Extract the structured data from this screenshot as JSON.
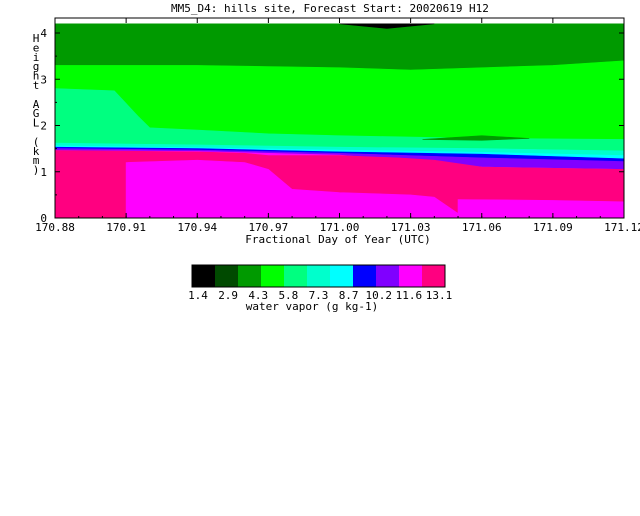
{
  "chart_data": {
    "type": "heatmap",
    "title": "MM5_D4: hills site,  Forecast Start: 20020619 H12",
    "xlabel": "Fractional Day of Year (UTC)",
    "ylabel": "Height AGL (km)",
    "xlim": [
      170.88,
      171.12
    ],
    "ylim": [
      0,
      4.2
    ],
    "x_ticks": [
      "170.88",
      "170.91",
      "170.94",
      "170.97",
      "171.00",
      "171.03",
      "171.06",
      "171.09",
      "171.12"
    ],
    "y_ticks": [
      "0",
      "1",
      "2",
      "3",
      "4"
    ],
    "colorbar": {
      "label": "water vapor (g kg-1)",
      "tick_labels": [
        "1.4",
        "2.9",
        "4.3",
        "5.8",
        "7.3",
        "8.7",
        "10.2",
        "11.6",
        "13.1"
      ],
      "colors": [
        "#000000",
        "#004a00",
        "#009a00",
        "#00ff00",
        "#00ff80",
        "#00ffcc",
        "#00ffff",
        "#0000ff",
        "#8000ff",
        "#ff00ff",
        "#ff0080"
      ]
    },
    "regions": [
      {
        "level": 1,
        "top": [
          [
            170.88,
            4.2
          ],
          [
            171.12,
            4.2
          ]
        ],
        "bottom": [
          [
            171.12,
            4.2
          ],
          [
            170.88,
            4.2
          ]
        ]
      },
      {
        "level": 2,
        "top": [
          [
            170.88,
            4.2
          ],
          [
            171.12,
            4.2
          ]
        ],
        "bottom": [
          [
            171.12,
            1.65
          ],
          [
            171.06,
            1.65
          ],
          [
            171.0,
            1.7
          ],
          [
            170.94,
            1.75
          ],
          [
            170.88,
            1.8
          ]
        ]
      },
      {
        "level": 3,
        "top": [
          [
            170.88,
            3.3
          ],
          [
            170.94,
            3.3
          ],
          [
            171.0,
            3.25
          ],
          [
            171.03,
            3.2
          ],
          [
            171.09,
            3.3
          ],
          [
            171.12,
            3.4
          ]
        ],
        "bottom": [
          [
            171.12,
            1.65
          ],
          [
            171.06,
            1.65
          ],
          [
            171.0,
            1.7
          ],
          [
            170.94,
            1.75
          ],
          [
            170.88,
            1.8
          ]
        ]
      },
      {
        "level": 4,
        "top": [
          [
            170.88,
            2.8
          ],
          [
            170.905,
            2.75
          ],
          [
            170.915,
            2.2
          ],
          [
            170.92,
            1.95
          ],
          [
            170.94,
            1.9
          ],
          [
            170.97,
            1.82
          ],
          [
            171.0,
            1.78
          ],
          [
            171.06,
            1.72
          ],
          [
            171.12,
            1.7
          ]
        ],
        "bottom": [
          [
            171.12,
            1.45
          ],
          [
            171.06,
            1.5
          ],
          [
            171.0,
            1.52
          ],
          [
            170.94,
            1.55
          ],
          [
            170.88,
            1.6
          ]
        ]
      },
      {
        "level": 5,
        "top": [
          [
            170.88,
            1.62
          ],
          [
            170.94,
            1.58
          ],
          [
            171.0,
            1.53
          ],
          [
            171.06,
            1.5
          ],
          [
            171.12,
            1.45
          ]
        ],
        "bottom": [
          [
            171.12,
            1.35
          ],
          [
            171.06,
            1.42
          ],
          [
            171.0,
            1.47
          ],
          [
            170.94,
            1.52
          ],
          [
            170.88,
            1.56
          ]
        ]
      },
      {
        "level": 6,
        "top": [
          [
            170.88,
            1.56
          ],
          [
            170.94,
            1.52
          ],
          [
            171.0,
            1.47
          ],
          [
            171.06,
            1.42
          ],
          [
            171.12,
            1.35
          ]
        ],
        "bottom": [
          [
            171.12,
            1.28
          ],
          [
            171.06,
            1.38
          ],
          [
            171.0,
            1.43
          ],
          [
            170.94,
            1.5
          ],
          [
            170.88,
            1.53
          ]
        ]
      },
      {
        "level": 7,
        "top": [
          [
            170.88,
            1.53
          ],
          [
            170.94,
            1.5
          ],
          [
            171.0,
            1.43
          ],
          [
            171.06,
            1.38
          ],
          [
            171.12,
            1.28
          ]
        ],
        "bottom": [
          [
            171.12,
            1.22
          ],
          [
            171.06,
            1.3
          ],
          [
            171.0,
            1.4
          ],
          [
            170.94,
            1.47
          ],
          [
            170.88,
            1.5
          ]
        ]
      },
      {
        "level": 8,
        "top": [
          [
            170.88,
            1.5
          ],
          [
            170.94,
            1.47
          ],
          [
            171.0,
            1.4
          ],
          [
            171.06,
            1.3
          ],
          [
            171.12,
            1.22
          ]
        ],
        "bottom": [
          [
            171.12,
            1.05
          ],
          [
            171.06,
            1.1
          ],
          [
            171.03,
            1.22
          ],
          [
            171.0,
            1.36
          ],
          [
            170.94,
            1.44
          ],
          [
            170.88,
            1.46
          ]
        ]
      },
      {
        "level": 9,
        "top": [
          [
            170.88,
            1.46
          ],
          [
            170.94,
            1.44
          ],
          [
            171.0,
            1.36
          ],
          [
            171.03,
            1.22
          ],
          [
            171.06,
            1.1
          ],
          [
            171.12,
            1.05
          ]
        ],
        "bottom": [
          [
            171.12,
            0.4
          ],
          [
            171.09,
            0.45
          ],
          [
            171.06,
            0.5
          ],
          [
            171.04,
            0.55
          ],
          [
            171.035,
            0.75
          ],
          [
            171.025,
            1.1
          ],
          [
            171.0,
            1.12
          ],
          [
            170.98,
            1.15
          ],
          [
            170.97,
            1.0
          ],
          [
            170.96,
            0.55
          ],
          [
            170.94,
            0.52
          ],
          [
            170.88,
            0.45
          ]
        ]
      },
      {
        "level": 10,
        "top": [
          [
            170.88,
            1.46
          ],
          [
            170.94,
            1.43
          ],
          [
            170.96,
            1.4
          ],
          [
            170.97,
            1.35
          ],
          [
            171.0,
            1.35
          ],
          [
            171.025,
            1.3
          ],
          [
            171.04,
            1.25
          ],
          [
            171.06,
            1.1
          ],
          [
            171.12,
            1.05
          ]
        ],
        "bottom": [
          [
            171.12,
            0
          ],
          [
            170.88,
            0
          ]
        ]
      }
    ],
    "overlays": [
      {
        "level": 10,
        "top": [
          [
            170.88,
            1.25
          ],
          [
            170.905,
            1.25
          ],
          [
            170.91,
            1.2
          ]
        ],
        "bottom": [
          [
            170.91,
            0
          ],
          [
            170.88,
            0
          ]
        ]
      },
      {
        "level": 9,
        "top": [
          [
            170.91,
            1.2
          ],
          [
            170.94,
            1.25
          ],
          [
            170.96,
            1.2
          ],
          [
            170.97,
            1.05
          ],
          [
            170.98,
            0.62
          ],
          [
            171.0,
            0.55
          ],
          [
            171.03,
            0.5
          ],
          [
            171.04,
            0.45
          ],
          [
            171.05,
            0.1
          ]
        ],
        "bottom": [
          [
            171.05,
            0
          ],
          [
            170.91,
            0
          ]
        ]
      },
      {
        "level": 9,
        "top": [
          [
            171.05,
            0.4
          ],
          [
            171.09,
            0.38
          ],
          [
            171.12,
            0.35
          ]
        ],
        "bottom": [
          [
            171.12,
            0
          ],
          [
            171.05,
            0
          ]
        ]
      },
      {
        "level": 2,
        "top": [
          [
            171.035,
            1.7
          ],
          [
            171.06,
            1.78
          ],
          [
            171.08,
            1.72
          ]
        ],
        "bottom": [
          [
            171.08,
            1.72
          ],
          [
            171.06,
            1.68
          ],
          [
            171.035,
            1.7
          ]
        ]
      },
      {
        "level": 0,
        "top": [
          [
            171.0,
            4.2
          ],
          [
            171.04,
            4.2
          ]
        ],
        "bottom": [
          [
            171.04,
            4.2
          ],
          [
            171.02,
            4.1
          ],
          [
            171.0,
            4.2
          ]
        ]
      }
    ]
  }
}
